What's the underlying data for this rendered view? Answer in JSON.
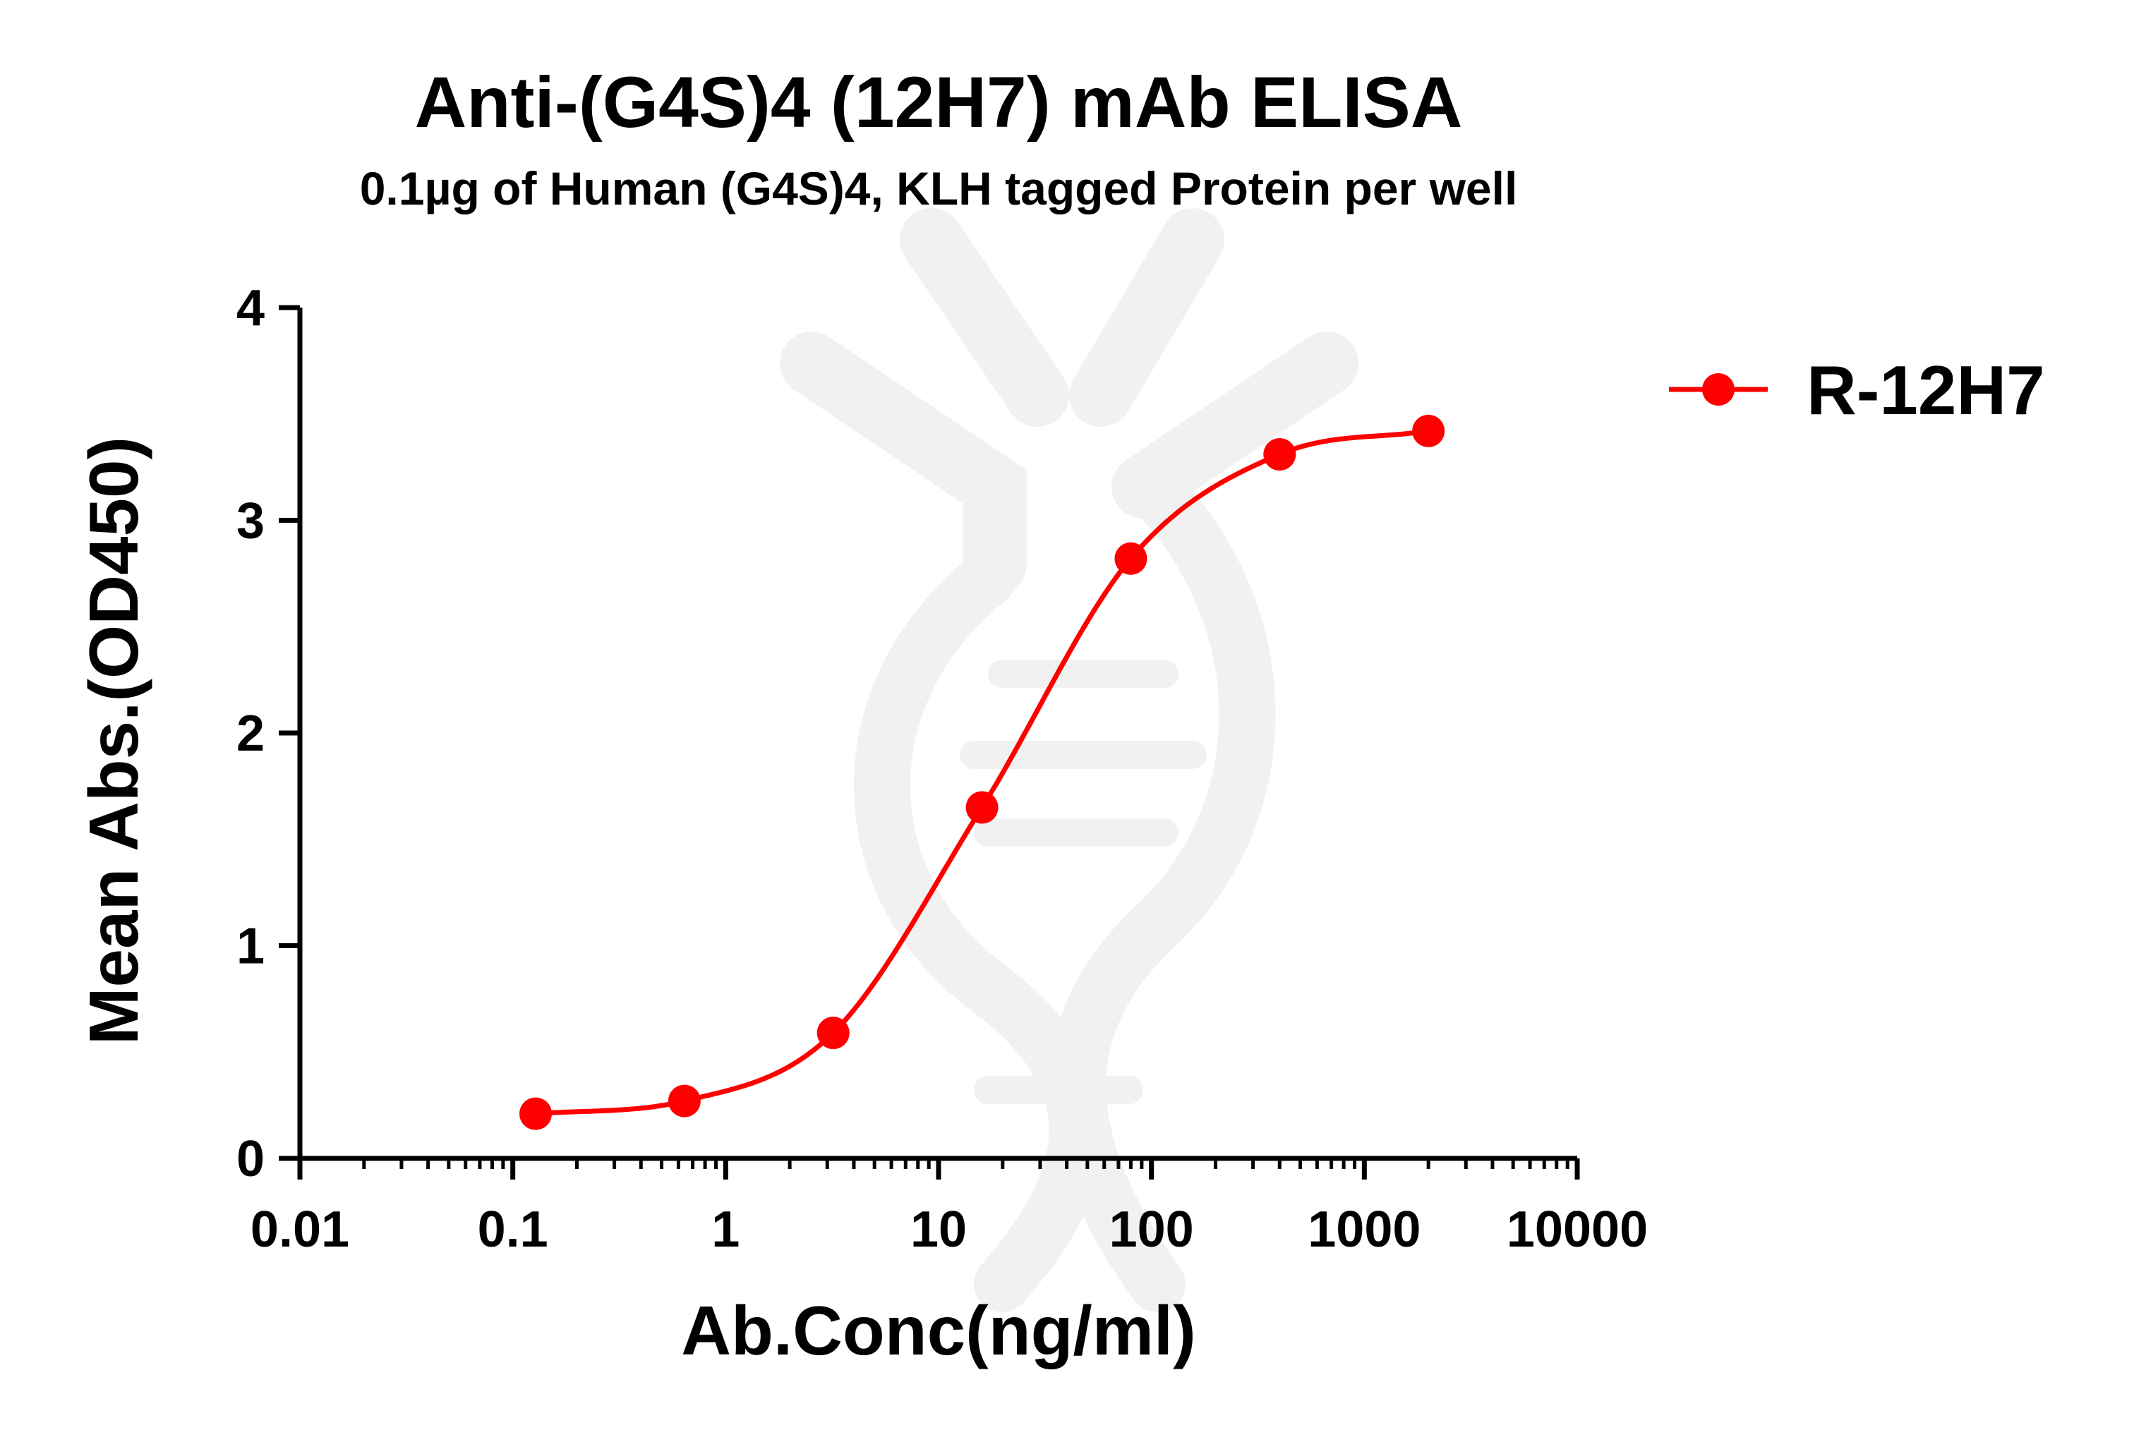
{
  "chart_data": {
    "type": "scatter",
    "title": "Anti-(G4S)4 (12H7) mAb ELISA",
    "subtitle": "0.1µg of Human (G4S)4, KLH tagged Protein per well",
    "xlabel": "Ab.Conc(ng/ml)",
    "ylabel": "Mean Abs.(OD450)",
    "xscale": "log",
    "xlim": [
      0.01,
      10000
    ],
    "ylim": [
      0,
      4
    ],
    "xticks": [
      0.01,
      0.1,
      1,
      10,
      100,
      1000,
      10000
    ],
    "xtick_labels": [
      "0.01",
      "0.1",
      "1",
      "10",
      "100",
      "1000",
      "10000"
    ],
    "yticks": [
      0,
      1,
      2,
      3,
      4
    ],
    "ytick_labels": [
      "0",
      "1",
      "2",
      "3",
      "4"
    ],
    "grid": false,
    "legend_position": "top-right",
    "fit": "sigmoidal (4PL) curve",
    "series": [
      {
        "name": "R-12H7",
        "color": "#ff0000",
        "marker": "circle",
        "x": [
          0.128,
          0.64,
          3.2,
          16,
          80,
          400,
          2000
        ],
        "y": [
          0.21,
          0.27,
          0.59,
          1.65,
          2.82,
          3.31,
          3.42
        ]
      }
    ]
  }
}
